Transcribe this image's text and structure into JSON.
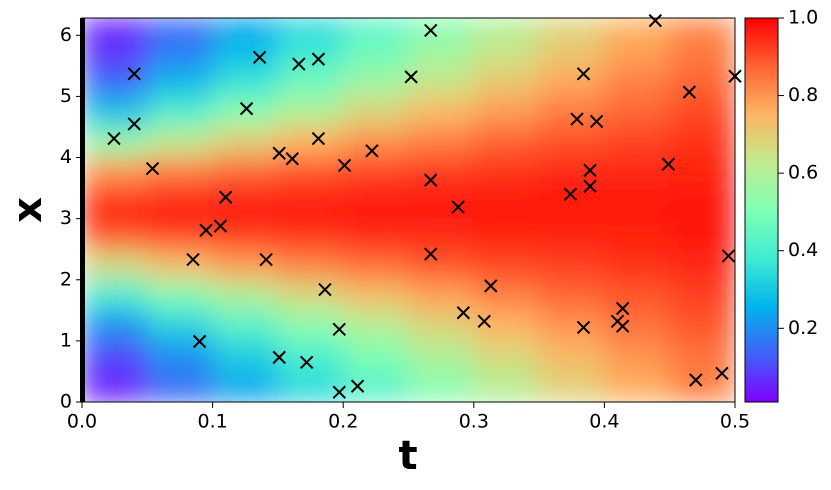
{
  "chart_data": {
    "type": "heatmap",
    "xlabel": "t",
    "ylabel": "x",
    "xlim": [
      0,
      0.5
    ],
    "ylim": [
      0,
      6.283
    ],
    "xticks": [
      {
        "value": 0,
        "label": "0.0"
      },
      0.1,
      0.2,
      0.3,
      0.4,
      0.5
    ],
    "yticks": [
      0,
      1,
      2,
      3,
      4,
      5,
      6
    ],
    "t_edges": [
      0,
      0.05,
      0.1,
      0.15,
      0.2,
      0.25,
      0.3,
      0.35,
      0.4,
      0.45,
      0.5
    ],
    "x_edges": [
      0,
      0.5,
      1,
      1.5,
      2,
      2.5,
      3,
      3.5,
      4,
      4.5,
      5,
      5.5,
      6,
      6.283
    ],
    "z": [
      [
        0.05,
        0.15,
        0.24,
        0.34,
        0.43,
        0.52,
        0.61,
        0.69,
        0.76,
        0.83
      ],
      [
        0.1,
        0.2,
        0.31,
        0.4,
        0.5,
        0.59,
        0.67,
        0.74,
        0.8,
        0.85
      ],
      [
        0.2,
        0.32,
        0.42,
        0.52,
        0.6,
        0.68,
        0.75,
        0.8,
        0.85,
        0.89
      ],
      [
        0.39,
        0.5,
        0.59,
        0.67,
        0.73,
        0.78,
        0.83,
        0.87,
        0.89,
        0.92
      ],
      [
        0.66,
        0.73,
        0.79,
        0.83,
        0.86,
        0.89,
        0.91,
        0.92,
        0.94,
        0.95
      ],
      [
        0.9,
        0.92,
        0.93,
        0.94,
        0.95,
        0.95,
        0.96,
        0.96,
        0.96,
        0.97
      ],
      [
        0.96,
        0.97,
        0.97,
        0.97,
        0.97,
        0.97,
        0.97,
        0.97,
        0.97,
        0.97
      ],
      [
        0.81,
        0.85,
        0.88,
        0.9,
        0.92,
        0.93,
        0.94,
        0.95,
        0.95,
        0.96
      ],
      [
        0.54,
        0.63,
        0.7,
        0.76,
        0.81,
        0.84,
        0.88,
        0.9,
        0.92,
        0.94
      ],
      [
        0.29,
        0.41,
        0.52,
        0.6,
        0.68,
        0.74,
        0.79,
        0.84,
        0.87,
        0.91
      ],
      [
        0.14,
        0.26,
        0.36,
        0.47,
        0.56,
        0.64,
        0.71,
        0.77,
        0.83,
        0.87
      ],
      [
        0.07,
        0.17,
        0.27,
        0.37,
        0.47,
        0.56,
        0.64,
        0.71,
        0.78,
        0.84
      ],
      [
        0.05,
        0.14,
        0.23,
        0.33,
        0.42,
        0.51,
        0.6,
        0.68,
        0.75,
        0.82
      ]
    ],
    "clim": [
      0.01,
      1.0
    ],
    "cticks": [
      0.2,
      0.4,
      0.6,
      0.8,
      {
        "value": 1.0,
        "label": "1.0"
      }
    ],
    "colormap": [
      "#8000ff",
      "#4062fa",
      "#00b5eb",
      "#40ecd4",
      "#80ffb4",
      "#c0eb8d",
      "#ffb462",
      "#ff6232",
      "#ff0000"
    ],
    "scatter": {
      "color": "#000000",
      "x": [
        0.0245,
        0.04,
        0.04,
        0.054,
        0.085,
        0.09,
        0.095,
        0.106,
        0.11,
        0.126,
        0.136,
        0.141,
        0.151,
        0.151,
        0.161,
        0.166,
        0.172,
        0.181,
        0.181,
        0.186,
        0.197,
        0.197,
        0.201,
        0.211,
        0.222,
        0.252,
        0.267,
        0.267,
        0.267,
        0.288,
        0.292,
        0.308,
        0.313,
        0.374,
        0.379,
        0.384,
        0.384,
        0.389,
        0.389,
        0.394,
        0.41,
        0.414,
        0.414,
        0.439,
        0.449,
        0.465,
        0.47,
        0.49,
        0.5,
        0.495
      ],
      "values": [
        4.31,
        5.37,
        4.55,
        3.82,
        2.33,
        0.99,
        2.81,
        2.88,
        3.35,
        4.8,
        5.64,
        2.33,
        4.07,
        0.73,
        3.98,
        5.53,
        0.65,
        5.61,
        4.31,
        1.84,
        1.19,
        0.16,
        3.87,
        0.26,
        4.11,
        5.32,
        6.08,
        3.63,
        2.42,
        3.19,
        1.46,
        1.32,
        1.9,
        3.4,
        4.63,
        5.37,
        1.22,
        3.79,
        3.53,
        4.59,
        1.32,
        1.53,
        1.24,
        6.24,
        3.89,
        5.07,
        0.36,
        0.47,
        5.33,
        2.39
      ]
    }
  }
}
